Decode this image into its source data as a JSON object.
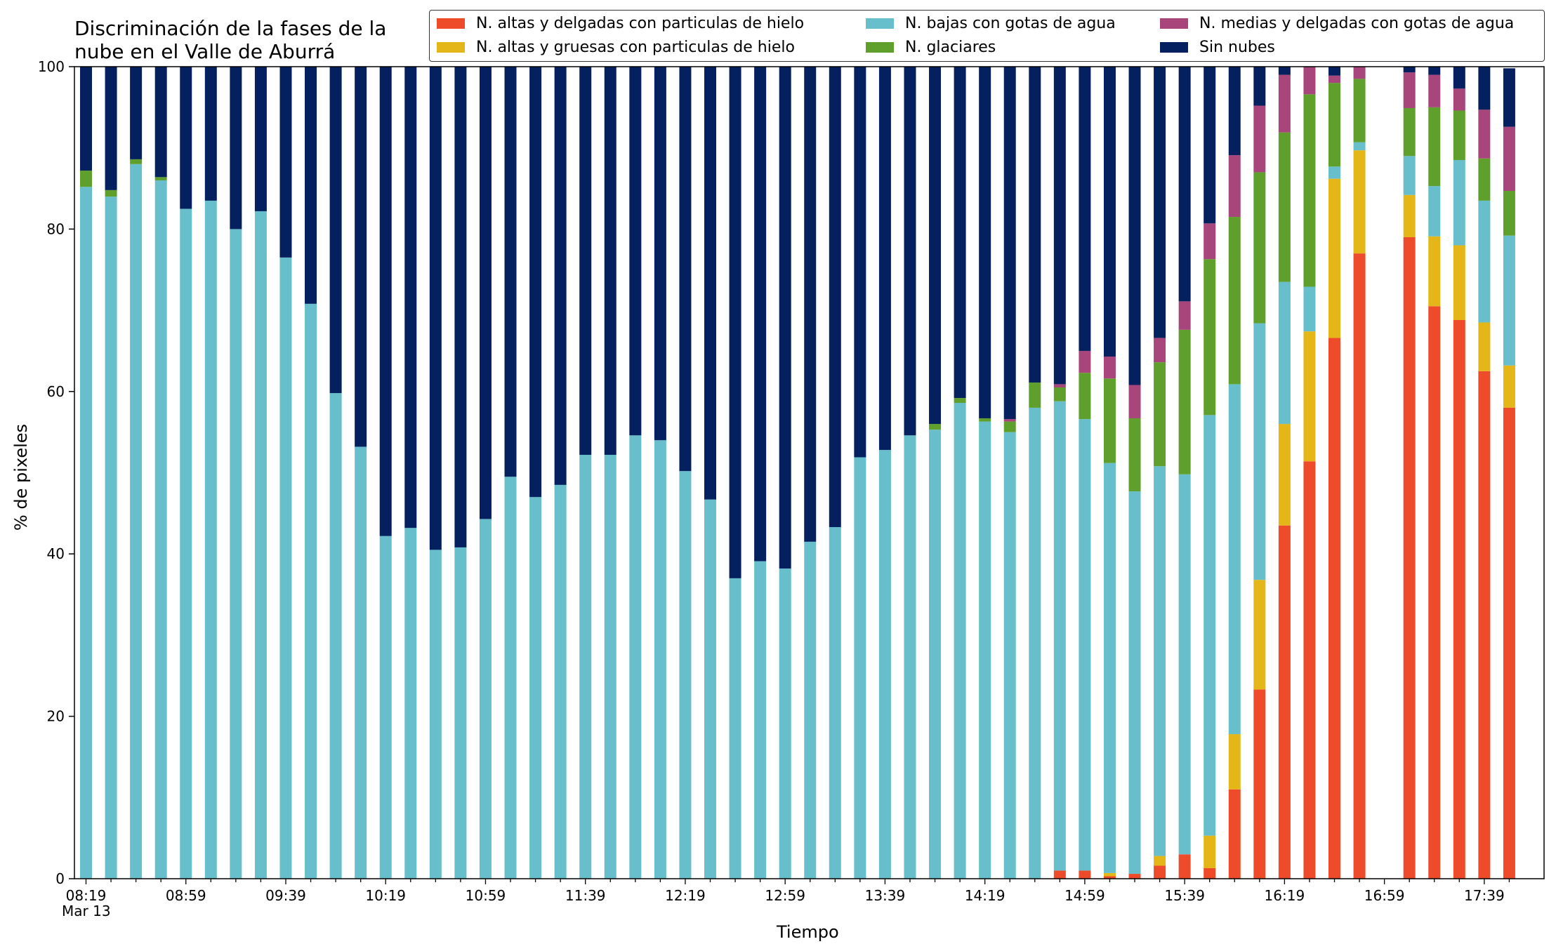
{
  "title": "Discriminación de la fases de la\nnube en el Valle de Aburrá",
  "chart_data": {
    "type": "bar",
    "stacked": true,
    "xlabel": "Tiempo",
    "ylabel": "% de pixeles",
    "ylim": [
      0,
      100
    ],
    "yticks": [
      0,
      20,
      40,
      60,
      80,
      100
    ],
    "grid": false,
    "legend_placement": "top-right",
    "x_date_label": "Mar 13",
    "x_tick_labels": [
      "08:19",
      "08:59",
      "09:39",
      "10:19",
      "10:59",
      "11:39",
      "12:19",
      "12:59",
      "13:39",
      "14:19",
      "14:59",
      "15:39",
      "16:19",
      "16:59",
      "17:39"
    ],
    "categories": [
      "08:19",
      "08:29",
      "08:39",
      "08:49",
      "08:59",
      "09:09",
      "09:19",
      "09:29",
      "09:39",
      "09:49",
      "09:59",
      "10:09",
      "10:19",
      "10:29",
      "10:39",
      "10:49",
      "10:59",
      "11:09",
      "11:19",
      "11:29",
      "11:39",
      "11:49",
      "11:59",
      "12:09",
      "12:19",
      "12:29",
      "12:39",
      "12:49",
      "12:59",
      "13:09",
      "13:19",
      "13:29",
      "13:39",
      "13:49",
      "13:59",
      "14:09",
      "14:19",
      "14:29",
      "14:39",
      "14:49",
      "14:59",
      "15:09",
      "15:19",
      "15:29",
      "15:39",
      "15:49",
      "15:59",
      "16:09",
      "16:19",
      "16:29",
      "16:39",
      "16:49",
      "16:59",
      "17:09",
      "17:19",
      "17:29",
      "17:39",
      "17:49"
    ],
    "series": [
      {
        "name": "N. altas y delgadas con particulas de hielo",
        "color": "#ee4b2b",
        "values": [
          0,
          0,
          0,
          0,
          0,
          0,
          0,
          0,
          0,
          0,
          0,
          0,
          0,
          0,
          0,
          0,
          0,
          0,
          0,
          0,
          0,
          0,
          0,
          0,
          0,
          0,
          0,
          0,
          0,
          0,
          0,
          0,
          0,
          0,
          0,
          0,
          0,
          0,
          0,
          1,
          1,
          0.3,
          0.6,
          1.6,
          3,
          1.3,
          11,
          23.3,
          43.5,
          51.4,
          66.6,
          77,
          0,
          79,
          70.5,
          68.8,
          62.5,
          58
        ]
      },
      {
        "name": "N. altas y gruesas con particulas de hielo",
        "color": "#e5b617",
        "values": [
          0,
          0,
          0,
          0,
          0,
          0,
          0,
          0,
          0,
          0,
          0,
          0,
          0,
          0,
          0,
          0,
          0,
          0,
          0,
          0,
          0,
          0,
          0,
          0,
          0,
          0,
          0,
          0,
          0,
          0,
          0,
          0,
          0,
          0,
          0,
          0,
          0,
          0,
          0,
          0,
          0,
          0.4,
          0,
          1.2,
          0,
          4,
          6.8,
          13.5,
          12.5,
          16,
          19.6,
          12.7,
          0,
          5.2,
          8.6,
          9.2,
          6,
          5.2
        ]
      },
      {
        "name": "N. bajas con gotas de agua",
        "color": "#67bfcb",
        "values": [
          85.2,
          84,
          88,
          86,
          82.5,
          83.5,
          80,
          82.2,
          76.5,
          70.8,
          59.8,
          53.2,
          42.2,
          43.2,
          40.5,
          40.8,
          44.3,
          49.5,
          47,
          48.5,
          52.2,
          52.2,
          54.6,
          54,
          50.2,
          46.7,
          37,
          39.1,
          38.2,
          41.5,
          43.3,
          51.9,
          52.8,
          54.6,
          55.3,
          58.6,
          56.3,
          55,
          58,
          57.8,
          55.6,
          50.5,
          47.1,
          48,
          46.8,
          51.8,
          43.1,
          31.6,
          17.5,
          5.5,
          1.5,
          1,
          0,
          4.8,
          6.2,
          10.5,
          15,
          16
        ]
      },
      {
        "name": "N. glaciares",
        "color": "#5fa02d",
        "values": [
          2,
          0.8,
          0.6,
          0.4,
          0,
          0,
          0,
          0,
          0,
          0,
          0,
          0,
          0,
          0,
          0,
          0,
          0,
          0,
          0,
          0,
          0,
          0,
          0,
          0,
          0,
          0,
          0,
          0,
          0,
          0,
          0,
          0,
          0,
          0,
          0.7,
          0.6,
          0.4,
          1.3,
          3.1,
          1.7,
          5.7,
          10.4,
          9,
          12.8,
          17.8,
          19.2,
          20.6,
          18.6,
          18.4,
          23.7,
          10.3,
          7.8,
          0,
          5.9,
          9.7,
          6.1,
          5.2,
          5.5
        ]
      },
      {
        "name": "N. medias y delgadas con gotas de agua",
        "color": "#a8457a",
        "values": [
          0,
          0,
          0,
          0,
          0,
          0,
          0,
          0,
          0,
          0,
          0,
          0,
          0,
          0,
          0,
          0,
          0,
          0,
          0,
          0,
          0,
          0,
          0,
          0,
          0,
          0,
          0,
          0,
          0,
          0,
          0,
          0,
          0,
          0,
          0,
          0,
          0,
          0.3,
          0,
          0.4,
          2.7,
          2.7,
          4.1,
          3,
          3.5,
          4.4,
          7.6,
          8.2,
          7.1,
          3.4,
          0.9,
          1.5,
          0,
          4.4,
          4,
          2.7,
          6,
          7.9
        ]
      },
      {
        "name": "Sin nubes",
        "color": "#05205e",
        "values": [
          12.8,
          15.2,
          11.4,
          13.6,
          17.5,
          16.5,
          20,
          17.8,
          23.5,
          29.2,
          40.2,
          46.8,
          57.8,
          56.8,
          59.5,
          59.2,
          55.7,
          50.5,
          53,
          51.5,
          47.8,
          47.8,
          45.4,
          46,
          49.8,
          53.3,
          63,
          60.9,
          61.8,
          58.5,
          56.7,
          48.1,
          47.2,
          45.4,
          44,
          40.8,
          43.3,
          43.4,
          38.9,
          39.1,
          35,
          35.7,
          39.2,
          33.4,
          28.9,
          19.3,
          10.9,
          4.8,
          1,
          0,
          1.1,
          0,
          0,
          0.7,
          1,
          2.7,
          5.3,
          7.2
        ]
      }
    ]
  }
}
